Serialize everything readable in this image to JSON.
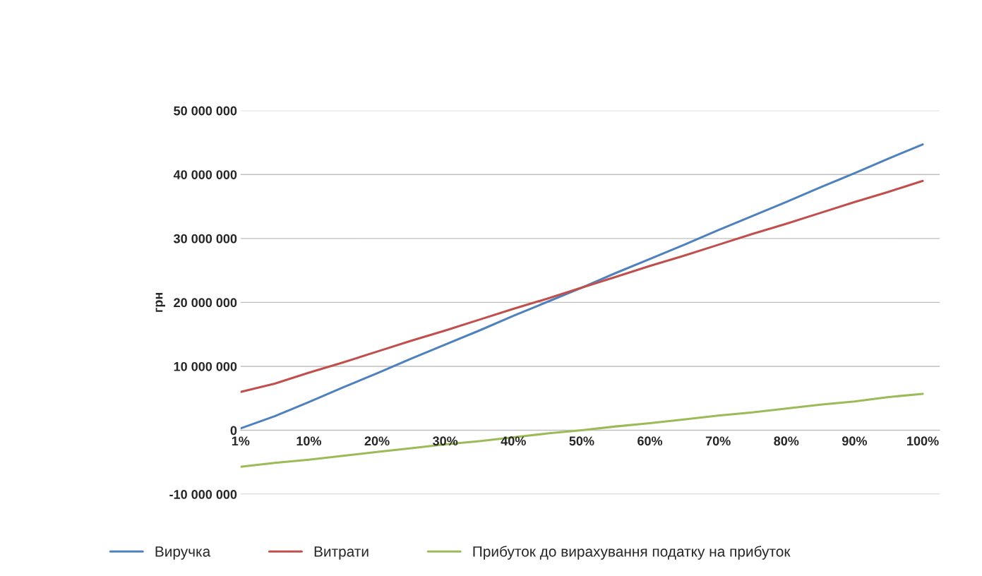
{
  "chart_data": {
    "type": "line",
    "ylabel": "грн",
    "categories": [
      "1%",
      null,
      "10%",
      null,
      "20%",
      null,
      "30%",
      null,
      "40%",
      null,
      "50%",
      null,
      "60%",
      null,
      "70%",
      null,
      "80%",
      null,
      "90%",
      null,
      "100%"
    ],
    "series": [
      {
        "name": "Виручка",
        "color": "#4f81bd",
        "values": [
          300000,
          2200000,
          4400000,
          6700000,
          8900000,
          11200000,
          13400000,
          15600000,
          17900000,
          20100000,
          22300000,
          24600000,
          26800000,
          29000000,
          31300000,
          33500000,
          35700000,
          38000000,
          40200000,
          42500000,
          44700000
        ]
      },
      {
        "name": "Витрати",
        "color": "#c0504d",
        "values": [
          6000000,
          7300000,
          9000000,
          10600000,
          12300000,
          14000000,
          15600000,
          17300000,
          19000000,
          20600000,
          22300000,
          24000000,
          25700000,
          27300000,
          29000000,
          30700000,
          32300000,
          34000000,
          35700000,
          37300000,
          39000000
        ]
      },
      {
        "name": "Прибуток до вирахування податку на прибуток",
        "color": "#9bbb59",
        "values": [
          -5700000,
          -5100000,
          -4600000,
          -4000000,
          -3400000,
          -2800000,
          -2200000,
          -1700000,
          -1100000,
          -500000,
          0,
          600000,
          1100000,
          1700000,
          2300000,
          2800000,
          3400000,
          4000000,
          4500000,
          5200000,
          5700000
        ]
      }
    ],
    "ylim": [
      -10000000,
      50000000
    ],
    "yticks": [
      {
        "value": -10000000,
        "label": "-10 000 000"
      },
      0,
      {
        "value": 10000000,
        "label": "10 000 000"
      },
      {
        "value": 20000000,
        "label": "20 000 000"
      },
      {
        "value": 30000000,
        "label": "30 000 000"
      },
      {
        "value": 40000000,
        "label": "40 000 000"
      },
      {
        "value": 50000000,
        "label": "50 000 000"
      }
    ],
    "grid": "y",
    "legend": "bottom",
    "marker": "none",
    "line_style": "solid"
  }
}
